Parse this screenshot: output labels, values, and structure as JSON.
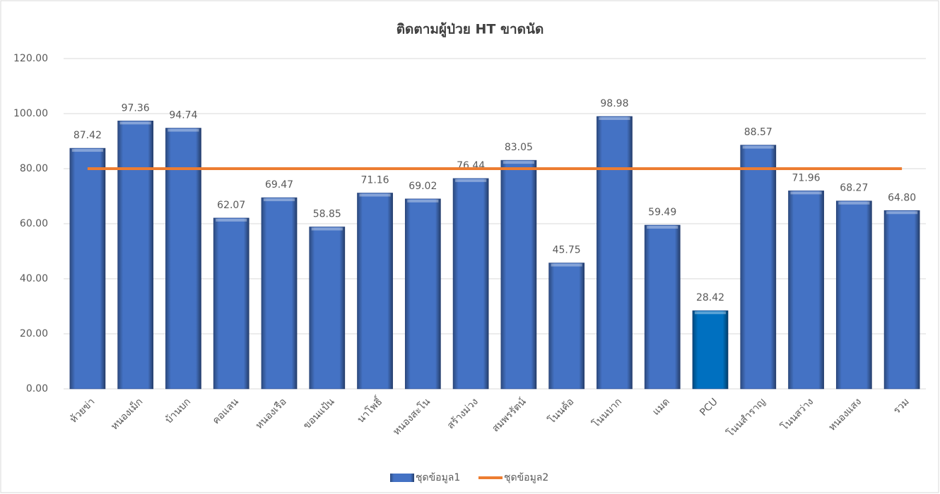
{
  "chart_data": {
    "type": "bar",
    "title": "ติดตามผู้ป่วย HT ขาดนัด",
    "categories": [
      "ห้วยข่า",
      "หนองเม็ก",
      "บ้านบก",
      "คอแลน",
      "หนองเรือ",
      "ขอนแป้น",
      "นาโพธิ์",
      "หนองสะโน",
      "สร้างม่วง",
      "สมพรรัตน์",
      "โนนค้อ",
      "โนนบาก",
      "แมด",
      "PCU",
      "โนนสำราญ",
      "โนนสว่าง",
      "หนองแสง",
      "รวม"
    ],
    "series": [
      {
        "name": "ชุดข้อมูล1",
        "type": "bar",
        "color": "#4472c4",
        "colors": [
          "#4472c4",
          "#4472c4",
          "#4472c4",
          "#4472c4",
          "#4472c4",
          "#4472c4",
          "#4472c4",
          "#4472c4",
          "#4472c4",
          "#4472c4",
          "#4472c4",
          "#4472c4",
          "#4472c4",
          "#0070c0",
          "#4472c4",
          "#4472c4",
          "#4472c4",
          "#4472c4"
        ],
        "values": [
          87.42,
          97.36,
          94.74,
          62.07,
          69.47,
          58.85,
          71.16,
          69.02,
          76.44,
          83.05,
          45.75,
          98.98,
          59.49,
          28.42,
          88.57,
          71.96,
          68.27,
          64.8
        ],
        "value_labels": [
          "87.42",
          "97.36",
          "94.74",
          "62.07",
          "69.47",
          "58.85",
          "71.16",
          "69.02",
          "76.44",
          "83.05",
          "45.75",
          "98.98",
          "59.49",
          "28.42",
          "88.57",
          "71.96",
          "68.27",
          "64.80"
        ]
      },
      {
        "name": "ชุดข้อมูล2",
        "type": "line",
        "color": "#ed7d31",
        "values": [
          80,
          80,
          80,
          80,
          80,
          80,
          80,
          80,
          80,
          80,
          80,
          80,
          80,
          80,
          80,
          80,
          80,
          80
        ]
      }
    ],
    "ylim": [
      0,
      120
    ],
    "yticks": [
      {
        "value": 0,
        "label": "0.00"
      },
      {
        "value": 20,
        "label": "20.00"
      },
      {
        "value": 40,
        "label": "40.00"
      },
      {
        "value": 60,
        "label": "60.00"
      },
      {
        "value": 80,
        "label": "80.00"
      },
      {
        "value": 100,
        "label": "100.00"
      },
      {
        "value": 120,
        "label": "120.00"
      }
    ],
    "grid": true,
    "legend": "bottom"
  }
}
